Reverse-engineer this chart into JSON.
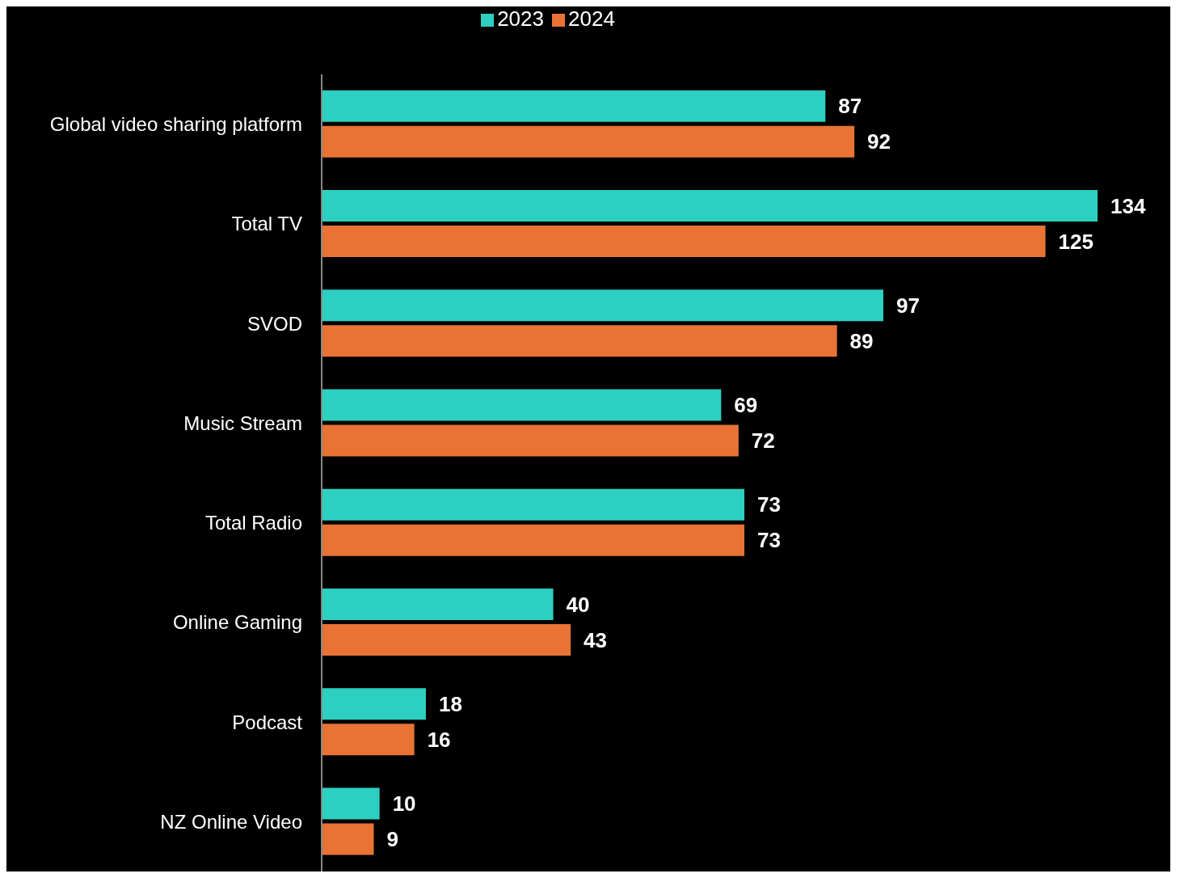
{
  "chart_data": {
    "type": "bar",
    "orientation": "horizontal",
    "categories": [
      "Global video sharing platform",
      "Total TV",
      "SVOD",
      "Music Stream",
      "Total Radio",
      "Online Gaming",
      "Podcast",
      "NZ Online Video"
    ],
    "series": [
      {
        "name": "2023",
        "color": "#2dd0c0",
        "values": [
          87,
          134,
          97,
          69,
          73,
          40,
          18,
          10
        ]
      },
      {
        "name": "2024",
        "color": "#e87335",
        "values": [
          92,
          125,
          89,
          72,
          73,
          43,
          16,
          9
        ]
      }
    ],
    "data_labels": true,
    "legend": "top"
  }
}
